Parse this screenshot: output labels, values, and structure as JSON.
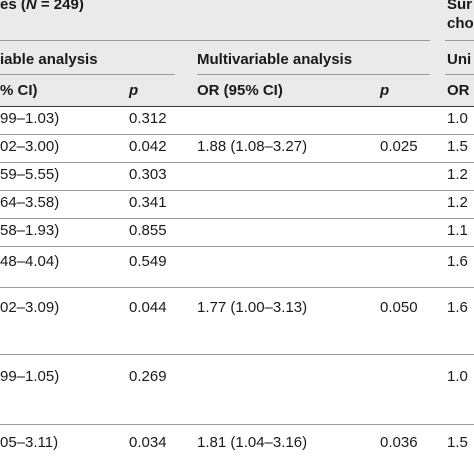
{
  "header": {
    "group_left_prefix": "es (",
    "group_left_n": "N",
    "group_left_suffix": " = 249)",
    "group_right_line1": "Sur",
    "group_right_line2": "cho",
    "sub_univariable": "iable analysis",
    "sub_multivariable": "Multivariable analysis",
    "sub_right": "Uni",
    "col_ci": "% CI)",
    "col_p1": "p",
    "col_or": "OR (95% CI)",
    "col_p2": "p",
    "col_or_right": "OR"
  },
  "rows": [
    {
      "ci": "99–1.03)",
      "p": "0.312",
      "mv_or": "",
      "mv_p": "",
      "right": "1.0"
    },
    {
      "ci": "02–3.00)",
      "p": "0.042",
      "mv_or": "1.88 (1.08–3.27)",
      "mv_p": "0.025",
      "right": "1.5"
    },
    {
      "ci": "59–5.55)",
      "p": "0.303",
      "mv_or": "",
      "mv_p": "",
      "right": "1.2"
    },
    {
      "ci": "64–3.58)",
      "p": "0.341",
      "mv_or": "",
      "mv_p": "",
      "right": "1.2"
    },
    {
      "ci": "58–1.93)",
      "p": "0.855",
      "mv_or": "",
      "mv_p": "",
      "right": "1.1"
    },
    {
      "ci": "48–4.04)",
      "p": "0.549",
      "mv_or": "",
      "mv_p": "",
      "right": "1.6"
    },
    {
      "ci": "02–3.09)",
      "p": "0.044",
      "mv_or": "1.77 (1.00–3.13)",
      "mv_p": "0.050",
      "right": "1.6"
    },
    {
      "ci": "99–1.05)",
      "p": "0.269",
      "mv_or": "",
      "mv_p": "",
      "right": "1.0"
    },
    {
      "ci": "05–3.11)",
      "p": "0.034",
      "mv_or": "1.81 (1.04–3.16)",
      "mv_p": "0.036",
      "right": "1.5"
    }
  ]
}
